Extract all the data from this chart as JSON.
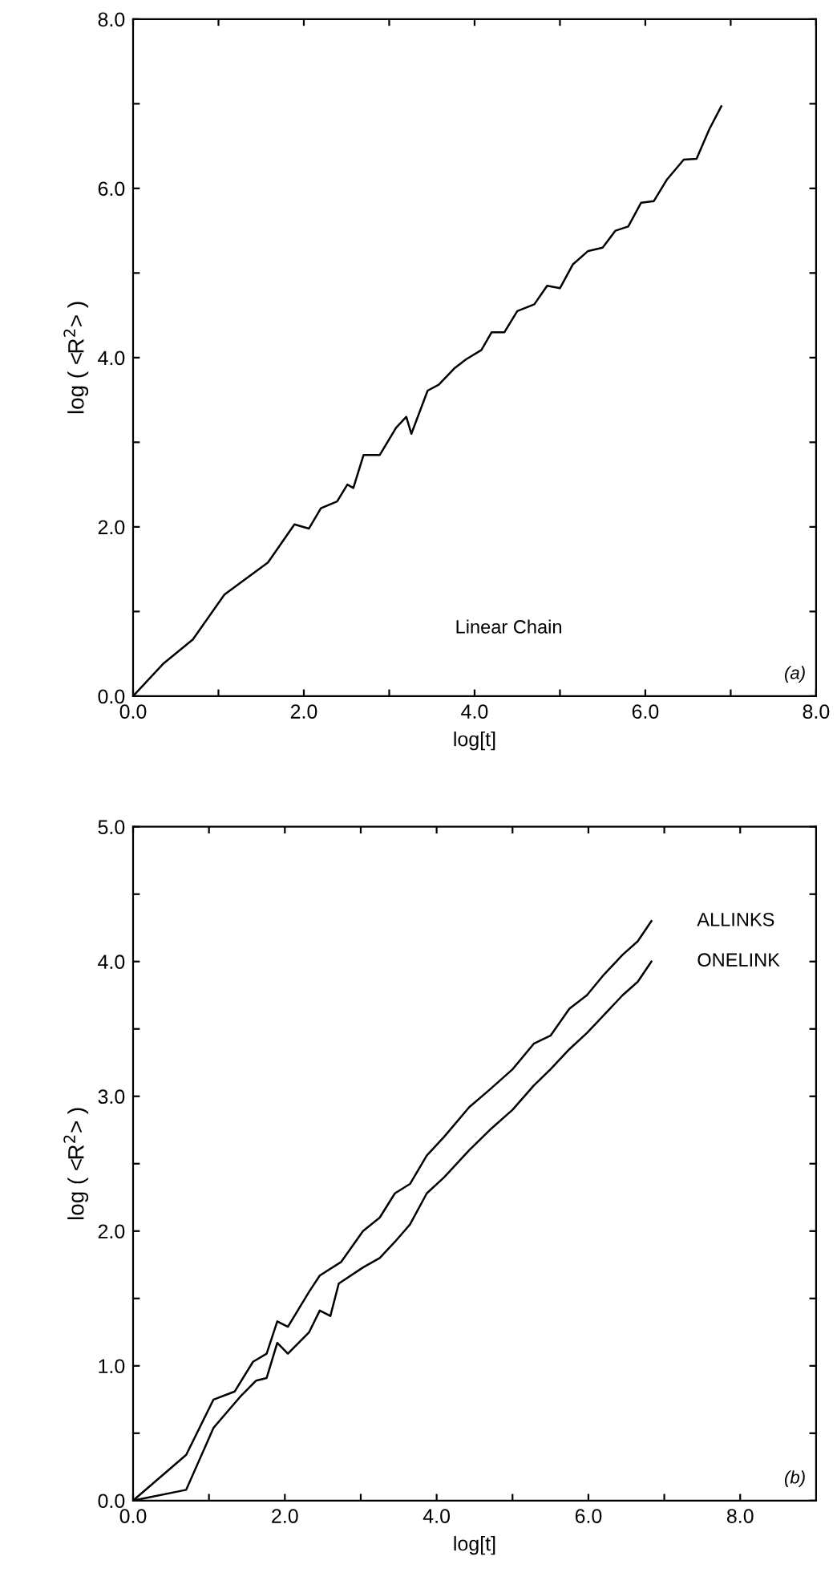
{
  "chart_data": [
    {
      "type": "line",
      "xlabel": "log[t]",
      "ylabel": "log ( <R$^{2}$> )",
      "annotations": [
        "Linear Chain",
        "(a)"
      ],
      "xlim": [
        0,
        8
      ],
      "ylim": [
        0,
        8
      ],
      "xticks": [
        {
          "value": 0,
          "label": "0.0"
        },
        {
          "value": 1,
          "label": null
        },
        {
          "value": 2,
          "label": "2.0"
        },
        {
          "value": 3,
          "label": null
        },
        {
          "value": 4,
          "label": "4.0"
        },
        {
          "value": 5,
          "label": null
        },
        {
          "value": 6,
          "label": "6.0"
        },
        {
          "value": 7,
          "label": null
        },
        {
          "value": 8,
          "label": "8.0"
        }
      ],
      "yticks": [
        {
          "value": 0,
          "label": "0.0"
        },
        {
          "value": 1,
          "label": null
        },
        {
          "value": 2,
          "label": "2.0"
        },
        {
          "value": 3,
          "label": null
        },
        {
          "value": 4,
          "label": "4.0"
        },
        {
          "value": 5,
          "label": null
        },
        {
          "value": 6,
          "label": "6.0"
        },
        {
          "value": 7,
          "label": null
        },
        {
          "value": 8,
          "label": "8.0"
        }
      ],
      "grid": false,
      "legend": false,
      "series": [
        {
          "color": "#000000",
          "x": [
            0,
            0.35,
            0.7,
            1.07,
            1.58,
            1.89,
            2.06,
            2.2,
            2.39,
            2.51,
            2.58,
            2.7,
            2.89,
            3.08,
            3.2,
            3.26,
            3.45,
            3.58,
            3.76,
            3.9,
            4.08,
            4.2,
            4.35,
            4.5,
            4.7,
            4.85,
            5.0,
            5.15,
            5.33,
            5.5,
            5.65,
            5.8,
            5.95,
            6.1,
            6.25,
            6.45,
            6.6,
            6.75,
            6.89
          ],
          "values": [
            0,
            0.38,
            0.67,
            1.2,
            1.58,
            2.03,
            1.98,
            2.22,
            2.3,
            2.5,
            2.46,
            2.85,
            2.85,
            3.17,
            3.3,
            3.1,
            3.61,
            3.68,
            3.87,
            3.98,
            4.09,
            4.3,
            4.3,
            4.55,
            4.63,
            4.85,
            4.82,
            5.1,
            5.26,
            5.3,
            5.5,
            5.55,
            5.83,
            5.85,
            6.1,
            6.34,
            6.35,
            6.7,
            6.97
          ]
        }
      ]
    },
    {
      "type": "line",
      "xlabel": "log[t]",
      "ylabel": "log ( <R$^{2}$> )",
      "annotations": [
        "(b)"
      ],
      "xlim": [
        0,
        9
      ],
      "ylim": [
        0,
        5
      ],
      "xticks": [
        {
          "value": 0,
          "label": "0.0"
        },
        {
          "value": 1,
          "label": null
        },
        {
          "value": 2,
          "label": "2.0"
        },
        {
          "value": 3,
          "label": null
        },
        {
          "value": 4,
          "label": "4.0"
        },
        {
          "value": 5,
          "label": null
        },
        {
          "value": 6,
          "label": "6.0"
        },
        {
          "value": 7,
          "label": null
        },
        {
          "value": 8,
          "label": "8.0"
        }
      ],
      "yticks": [
        {
          "value": 0,
          "label": "0.0"
        },
        {
          "value": 0.5,
          "label": null
        },
        {
          "value": 1,
          "label": "1.0"
        },
        {
          "value": 1.5,
          "label": null
        },
        {
          "value": 2,
          "label": "2.0"
        },
        {
          "value": 2.5,
          "label": null
        },
        {
          "value": 3,
          "label": "3.0"
        },
        {
          "value": 3.5,
          "label": null
        },
        {
          "value": 4,
          "label": "4.0"
        },
        {
          "value": 4.5,
          "label": null
        },
        {
          "value": 5,
          "label": "5.0"
        }
      ],
      "grid": false,
      "legend": "right",
      "series": [
        {
          "name": "ALLINKS",
          "color": "#000000",
          "x": [
            0,
            0.7,
            1.06,
            1.34,
            1.58,
            1.76,
            1.9,
            2.04,
            2.32,
            2.46,
            2.74,
            3.03,
            3.25,
            3.45,
            3.65,
            3.87,
            4.1,
            4.43,
            4.7,
            5.0,
            5.28,
            5.5,
            5.75,
            5.98,
            6.2,
            6.45,
            6.65,
            6.83
          ],
          "values": [
            0,
            0.34,
            0.75,
            0.81,
            1.03,
            1.09,
            1.33,
            1.29,
            1.55,
            1.67,
            1.77,
            2.0,
            2.1,
            2.28,
            2.35,
            2.56,
            2.7,
            2.92,
            3.05,
            3.2,
            3.39,
            3.45,
            3.65,
            3.75,
            3.9,
            4.05,
            4.15,
            4.3
          ]
        },
        {
          "name": "ONELINK",
          "color": "#000000",
          "x": [
            0,
            0.7,
            1.06,
            1.41,
            1.62,
            1.76,
            1.9,
            2.04,
            2.32,
            2.46,
            2.6,
            2.71,
            3.03,
            3.25,
            3.45,
            3.65,
            3.87,
            4.1,
            4.43,
            4.7,
            5.0,
            5.28,
            5.5,
            5.75,
            5.98,
            6.2,
            6.45,
            6.65,
            6.83
          ],
          "values": [
            0,
            0.08,
            0.54,
            0.77,
            0.89,
            0.91,
            1.17,
            1.09,
            1.25,
            1.41,
            1.37,
            1.61,
            1.73,
            1.8,
            1.92,
            2.05,
            2.28,
            2.4,
            2.6,
            2.75,
            2.9,
            3.08,
            3.2,
            3.35,
            3.47,
            3.6,
            3.75,
            3.85,
            4.0
          ]
        }
      ]
    }
  ]
}
